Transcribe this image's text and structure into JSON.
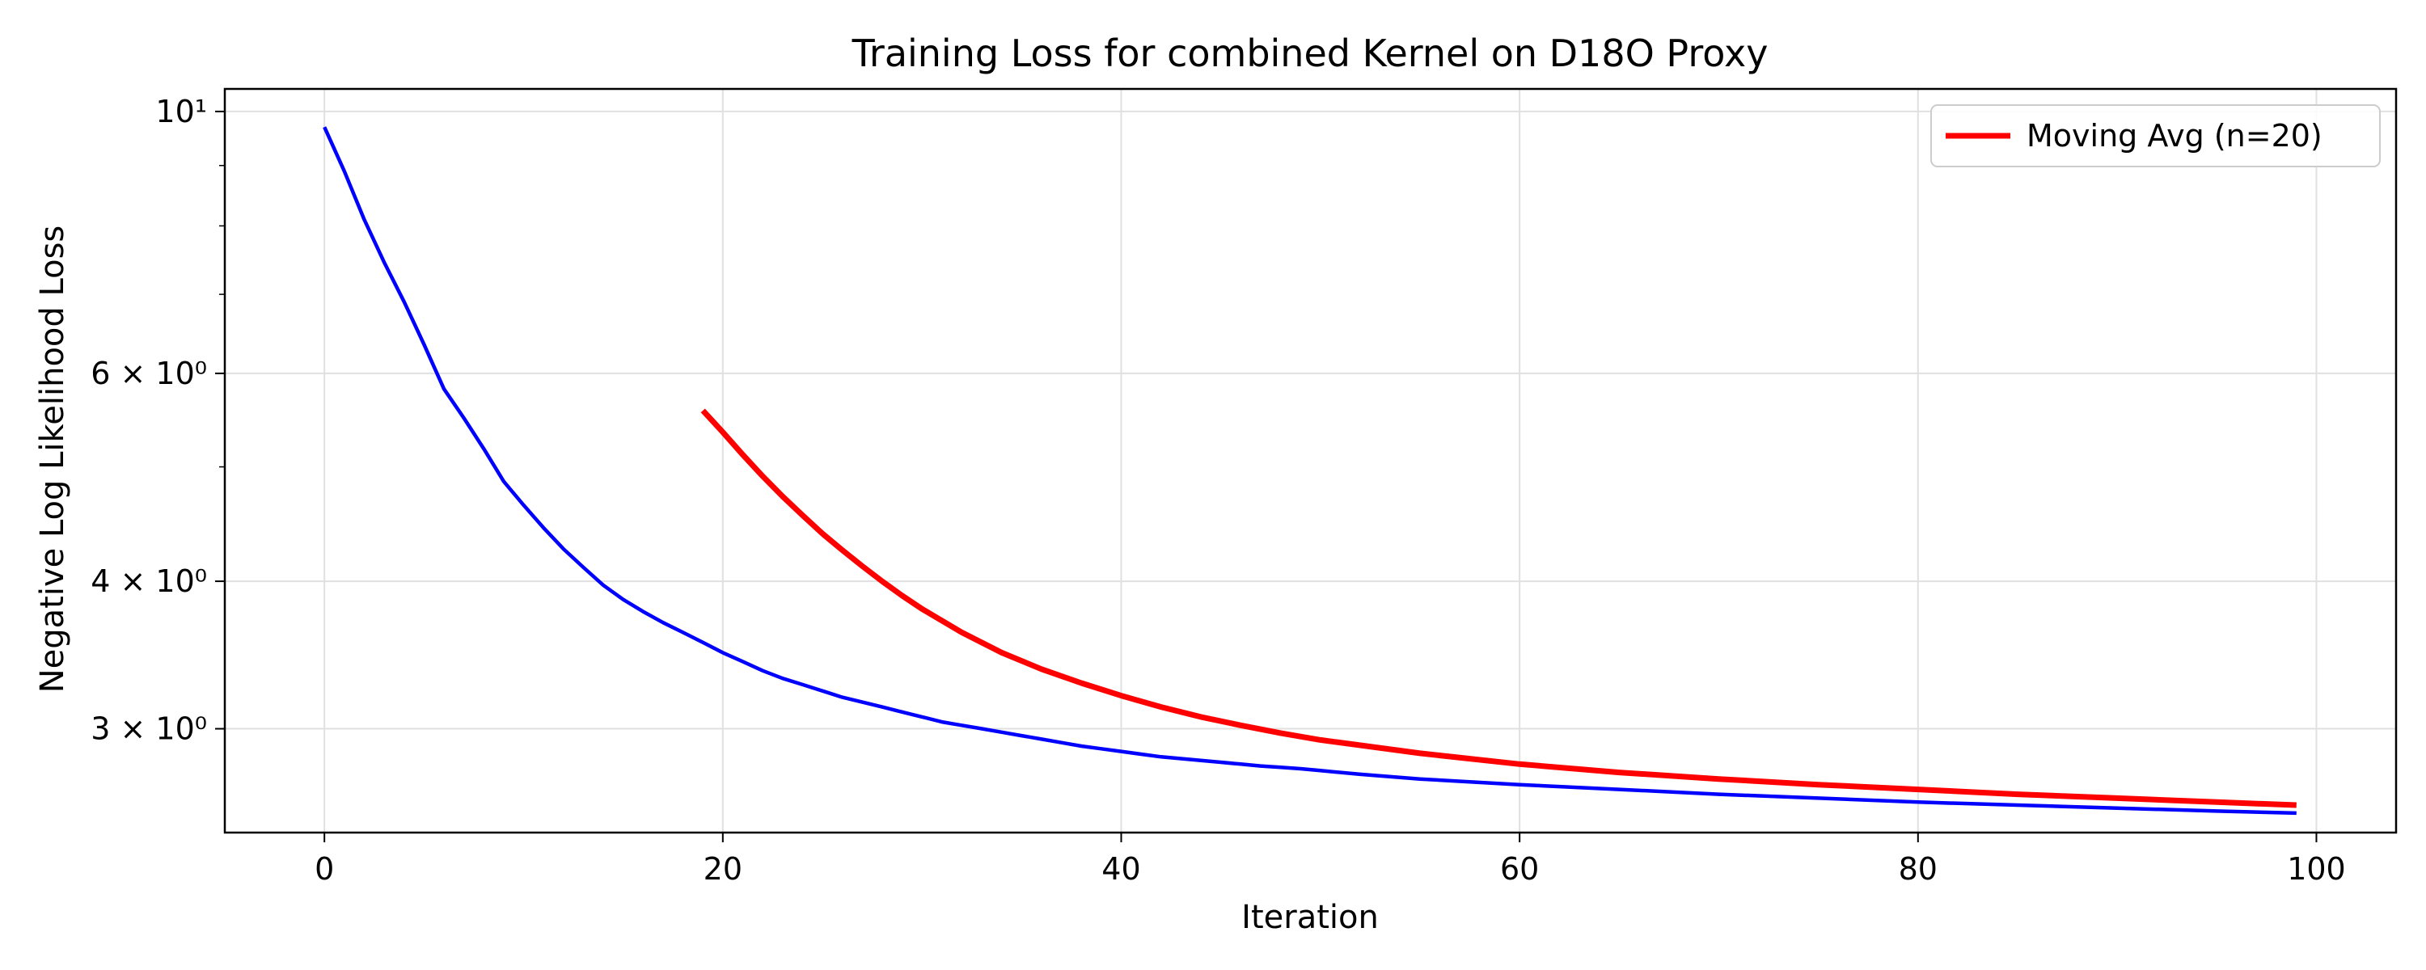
{
  "chart_data": {
    "type": "line",
    "title": "Training Loss for combined Kernel on D18O Proxy",
    "xlabel": "Iteration",
    "ylabel": "Negative Log Likelihood Loss",
    "xlim": [
      -5,
      104
    ],
    "ylim": [
      2.45,
      10.45
    ],
    "yscale": "log",
    "grid": true,
    "legend_position": "top-right",
    "x_ticks": [
      0,
      20,
      40,
      60,
      80,
      100
    ],
    "x_tick_labels": [
      "0",
      "20",
      "40",
      "60",
      "80",
      "100"
    ],
    "y_ticks": [
      3,
      4,
      6,
      10
    ],
    "y_tick_labels": [
      "3 × 10⁰",
      "4 × 10⁰",
      "6 × 10⁰",
      "10¹"
    ],
    "series": [
      {
        "name": "",
        "color": "#0000ff",
        "x": [
          0,
          1,
          2,
          3,
          4,
          5,
          6,
          7,
          8,
          9,
          10,
          11,
          12,
          13,
          14,
          15,
          16,
          17,
          18,
          19,
          20,
          21,
          22,
          23,
          24,
          25,
          26,
          27,
          28,
          29,
          30,
          31,
          32,
          33,
          34,
          35,
          36,
          37,
          38,
          39,
          40,
          41,
          42,
          43,
          44,
          45,
          46,
          47,
          48,
          49,
          50,
          52,
          55,
          60,
          65,
          70,
          75,
          80,
          85,
          90,
          95,
          99
        ],
        "y": [
          9.7,
          8.9,
          8.1,
          7.45,
          6.9,
          6.35,
          5.82,
          5.5,
          5.18,
          4.86,
          4.64,
          4.44,
          4.26,
          4.11,
          3.97,
          3.86,
          3.77,
          3.69,
          3.62,
          3.55,
          3.48,
          3.42,
          3.36,
          3.31,
          3.27,
          3.23,
          3.19,
          3.16,
          3.13,
          3.1,
          3.07,
          3.04,
          3.02,
          3.0,
          2.98,
          2.96,
          2.94,
          2.92,
          2.9,
          2.885,
          2.87,
          2.855,
          2.84,
          2.83,
          2.82,
          2.81,
          2.8,
          2.79,
          2.783,
          2.775,
          2.765,
          2.745,
          2.72,
          2.69,
          2.665,
          2.64,
          2.62,
          2.6,
          2.585,
          2.57,
          2.555,
          2.545
        ]
      },
      {
        "name": "Moving Avg (n=20)",
        "color": "#ff0000",
        "x": [
          19,
          20,
          21,
          22,
          23,
          24,
          25,
          26,
          27,
          28,
          29,
          30,
          32,
          34,
          36,
          38,
          40,
          42,
          44,
          46,
          48,
          50,
          55,
          60,
          65,
          70,
          75,
          80,
          85,
          90,
          95,
          99
        ],
        "y": [
          5.58,
          5.35,
          5.12,
          4.91,
          4.72,
          4.55,
          4.39,
          4.25,
          4.12,
          4.0,
          3.89,
          3.79,
          3.62,
          3.48,
          3.37,
          3.28,
          3.2,
          3.13,
          3.07,
          3.02,
          2.975,
          2.935,
          2.86,
          2.8,
          2.755,
          2.72,
          2.69,
          2.665,
          2.64,
          2.62,
          2.6,
          2.585
        ]
      }
    ]
  }
}
